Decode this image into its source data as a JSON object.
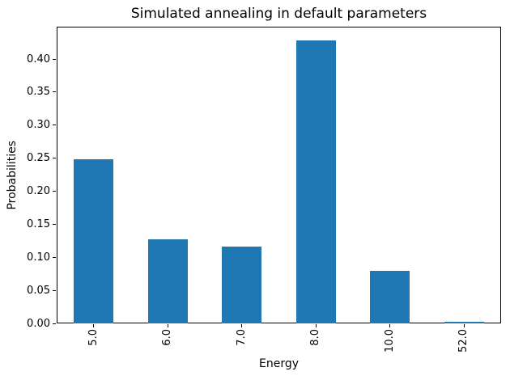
{
  "chart_data": {
    "type": "bar",
    "title": "Simulated annealing in default parameters",
    "xlabel": "Energy",
    "ylabel": "Probabilities",
    "categories": [
      "5.0",
      "6.0",
      "7.0",
      "8.0",
      "10.0",
      "52.0"
    ],
    "values": [
      0.248,
      0.127,
      0.116,
      0.428,
      0.08,
      0.003
    ],
    "ytick_labels": [
      "0.00",
      "0.05",
      "0.10",
      "0.15",
      "0.20",
      "0.25",
      "0.30",
      "0.35",
      "0.40"
    ],
    "ylim": [
      0,
      0.449
    ],
    "bar_color": "#1f77b4",
    "bar_width_ratio": 0.535,
    "spine_color": "#000000",
    "grid": "off",
    "legend": "none",
    "x_tick_rotation_deg": 90
  }
}
